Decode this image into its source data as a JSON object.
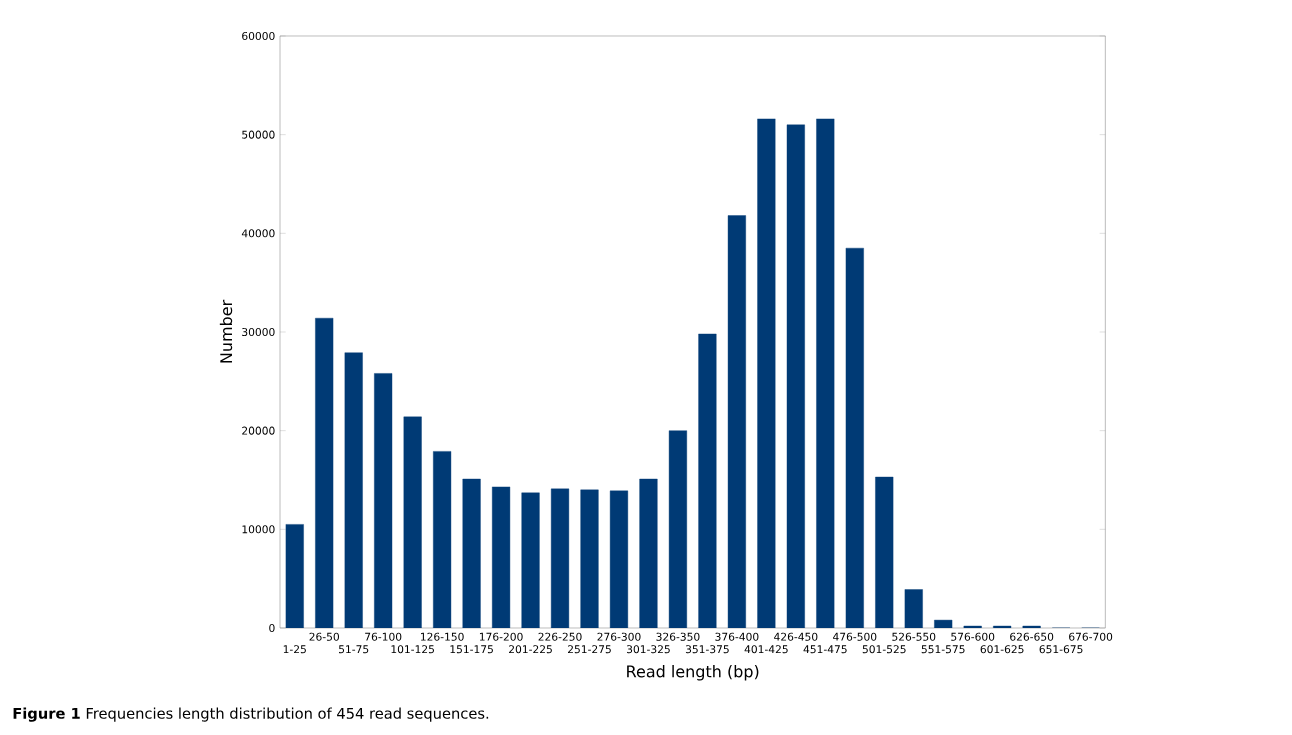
{
  "chart_data": {
    "type": "bar",
    "xlabel": "Read length (bp)",
    "ylabel": "Number",
    "categories": [
      "1-25",
      "26-50",
      "51-75",
      "76-100",
      "101-125",
      "126-150",
      "151-175",
      "176-200",
      "201-225",
      "226-250",
      "251-275",
      "276-300",
      "301-325",
      "326-350",
      "351-375",
      "376-400",
      "401-425",
      "426-450",
      "451-475",
      "476-500",
      "501-525",
      "526-550",
      "551-575",
      "576-600",
      "601-625",
      "626-650",
      "651-675",
      "676-700"
    ],
    "values": [
      10500,
      31400,
      27900,
      25800,
      21400,
      17900,
      15100,
      14300,
      13700,
      14100,
      14000,
      13900,
      15100,
      20000,
      29800,
      41800,
      51600,
      51000,
      51600,
      38500,
      15300,
      3900,
      800,
      200,
      200,
      200,
      0,
      0
    ],
    "color": "#003a75",
    "ylim": [
      0,
      60000
    ],
    "yticks": [
      0,
      10000,
      20000,
      30000,
      40000,
      50000,
      60000
    ],
    "grid": false,
    "annotations": [
      "**Figure 1** Frequencies length distribution of 454 read sequences."
    ]
  }
}
